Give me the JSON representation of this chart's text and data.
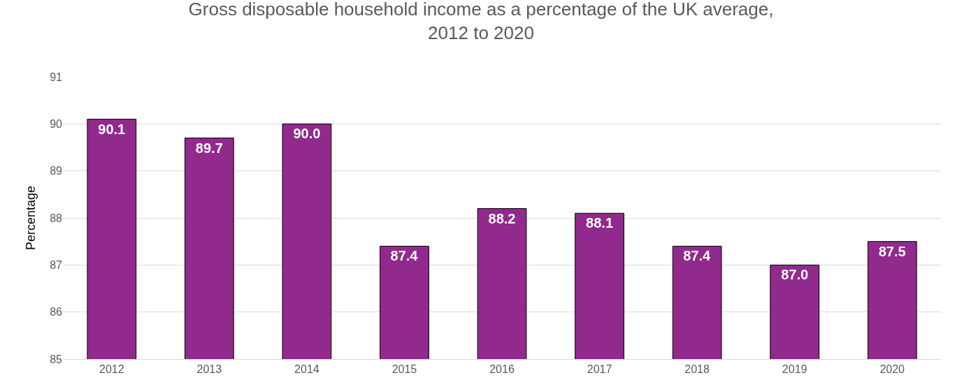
{
  "chart_data": {
    "type": "bar",
    "title": "Gross disposable household income as a percentage of the UK average, 2012 to 2020",
    "ylabel": "Percentage",
    "categories": [
      "2012",
      "2013",
      "2014",
      "2015",
      "2016",
      "2017",
      "2018",
      "2019",
      "2020"
    ],
    "values": [
      90.1,
      89.7,
      90.0,
      87.4,
      88.2,
      88.1,
      87.4,
      87.0,
      87.5
    ],
    "value_labels": [
      "90.1",
      "89.7",
      "90.0",
      "87.4",
      "88.2",
      "88.1",
      "87.4",
      "87.0",
      "87.5"
    ],
    "color": "#912a8c",
    "ylim": [
      85,
      91
    ],
    "yticks": [
      85,
      86,
      87,
      88,
      89,
      90,
      91
    ],
    "grid": "y",
    "legend": false
  }
}
